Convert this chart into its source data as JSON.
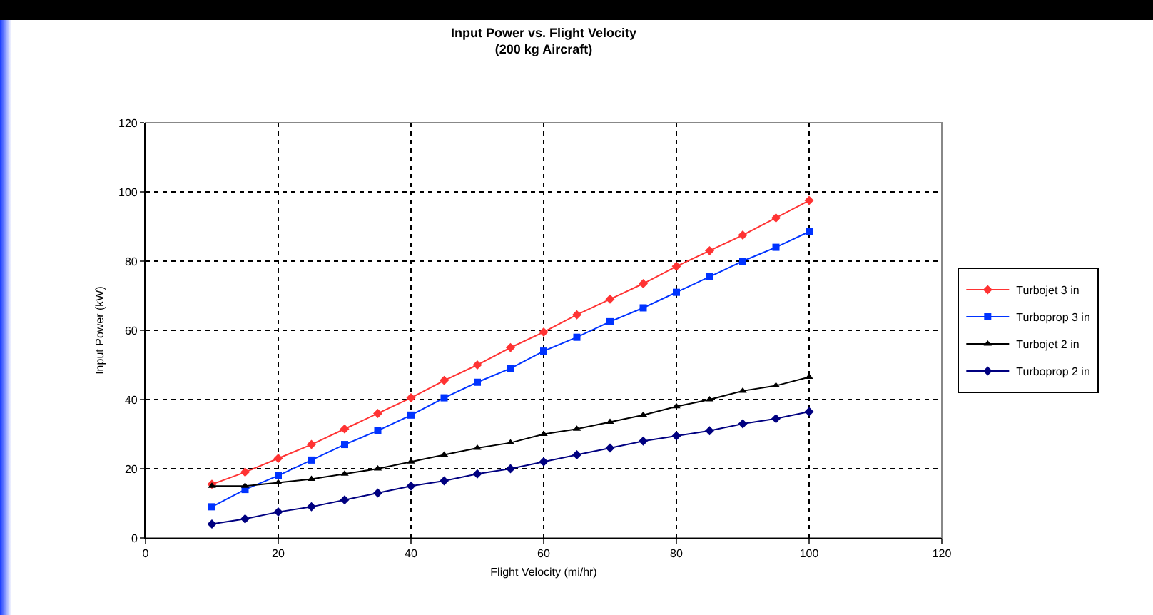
{
  "chart_data": {
    "type": "line",
    "title": "Input Power vs. Flight Velocity",
    "subtitle": "(200 kg Aircraft)",
    "xlabel": "Flight Velocity (mi/hr)",
    "ylabel": "Input Power (kW)",
    "x": [
      10,
      15,
      20,
      25,
      30,
      35,
      40,
      45,
      50,
      55,
      60,
      65,
      70,
      75,
      80,
      85,
      90,
      95,
      100
    ],
    "series": [
      {
        "name": "Turbojet 3 in",
        "color": "#ff3333",
        "marker": "diamond",
        "values": [
          15.5,
          19,
          23,
          27,
          31.5,
          36,
          40.5,
          45.5,
          50,
          55,
          59.5,
          64.5,
          69,
          73.5,
          78.5,
          83,
          87.5,
          92.5,
          97.5
        ]
      },
      {
        "name": "Turboprop 3 in",
        "color": "#0033ff",
        "marker": "square",
        "values": [
          9,
          14,
          18,
          22.5,
          27,
          31,
          35.5,
          40.5,
          45,
          49,
          54,
          58,
          62.5,
          66.5,
          71,
          75.5,
          80,
          84,
          88.5
        ]
      },
      {
        "name": "Turbojet 2 in",
        "color": "#000000",
        "marker": "triangle",
        "values": [
          15,
          15,
          16,
          17,
          18.5,
          20,
          22,
          24,
          26,
          27.5,
          30,
          31.5,
          33.5,
          35.5,
          38,
          40,
          42.5,
          44,
          46.5
        ]
      },
      {
        "name": "Turboprop 2 in",
        "color": "#000080",
        "marker": "diamond",
        "values": [
          4,
          5.5,
          7.5,
          9,
          11,
          13,
          15,
          16.5,
          18.5,
          20,
          22,
          24,
          26,
          28,
          29.5,
          31,
          33,
          34.5,
          36.5
        ]
      }
    ],
    "xlim": [
      0,
      120
    ],
    "xticks": [
      0,
      20,
      40,
      60,
      80,
      100,
      120
    ],
    "ylim": [
      0,
      120
    ],
    "yticks": [
      0,
      20,
      40,
      60,
      80,
      100,
      120
    ],
    "grid": true,
    "legend": "right",
    "line_style": "solid"
  }
}
